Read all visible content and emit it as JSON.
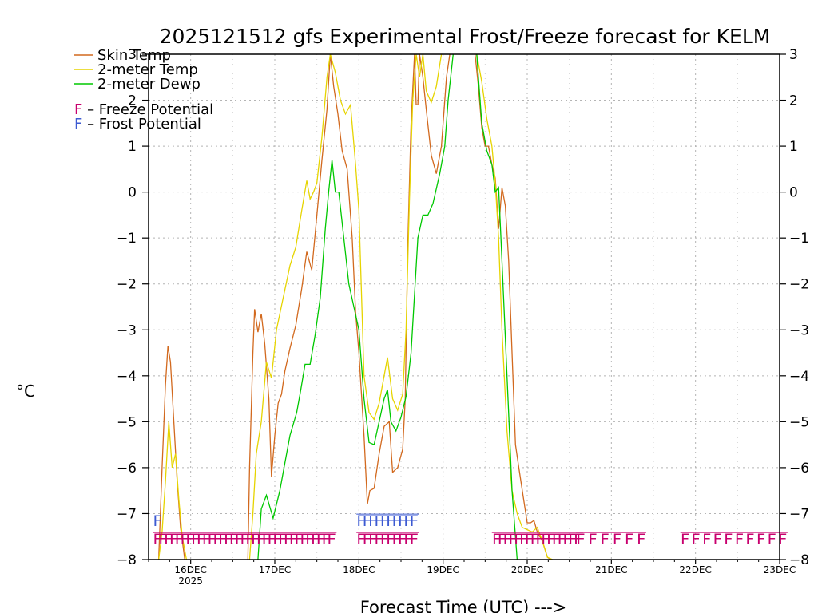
{
  "chart_data": {
    "type": "line",
    "title": "2025121512 gfs Experimental Frost/Freeze forecast for KELM",
    "xlabel": "Forecast Time (UTC) --->",
    "ylabel": "°C",
    "ylim": [
      -8,
      3
    ],
    "xlim": [
      15.5,
      23.0
    ],
    "yticks": [
      -8,
      -7,
      -6,
      -5,
      -4,
      -3,
      -2,
      -1,
      0,
      1,
      2,
      3
    ],
    "xticks": [
      {
        "x": 16,
        "label": "16DEC",
        "sublabel": "2025"
      },
      {
        "x": 17,
        "label": "17DEC",
        "sublabel": ""
      },
      {
        "x": 18,
        "label": "18DEC",
        "sublabel": ""
      },
      {
        "x": 19,
        "label": "19DEC",
        "sublabel": ""
      },
      {
        "x": 20,
        "label": "20DEC",
        "sublabel": ""
      },
      {
        "x": 21,
        "label": "21DEC",
        "sublabel": ""
      },
      {
        "x": 22,
        "label": "22DEC",
        "sublabel": ""
      },
      {
        "x": 23,
        "label": "23DEC",
        "sublabel": ""
      }
    ],
    "grid": true,
    "legend_position": "top-left",
    "series": [
      {
        "name": "Skin Temp",
        "color": "#d2691e",
        "points": [
          [
            15.62,
            -8.0
          ],
          [
            15.66,
            -6.0
          ],
          [
            15.7,
            -4.2
          ],
          [
            15.73,
            -3.35
          ],
          [
            15.76,
            -3.7
          ],
          [
            15.8,
            -5.0
          ],
          [
            15.84,
            -6.3
          ],
          [
            15.88,
            -7.3
          ],
          [
            15.93,
            -8.0
          ],
          null,
          [
            16.68,
            -8.0
          ],
          [
            16.7,
            -6.0
          ],
          [
            16.74,
            -3.5
          ],
          [
            16.76,
            -2.55
          ],
          [
            16.8,
            -3.05
          ],
          [
            16.84,
            -2.65
          ],
          [
            16.88,
            -3.3
          ],
          [
            16.93,
            -4.5
          ],
          [
            16.96,
            -6.2
          ],
          [
            17.0,
            -5.3
          ],
          [
            17.04,
            -4.6
          ],
          [
            17.08,
            -4.4
          ],
          [
            17.12,
            -3.9
          ],
          [
            17.18,
            -3.4
          ],
          [
            17.25,
            -2.9
          ],
          [
            17.32,
            -2.1
          ],
          [
            17.38,
            -1.3
          ],
          [
            17.44,
            -1.7
          ],
          [
            17.5,
            -0.5
          ],
          [
            17.56,
            0.7
          ],
          [
            17.62,
            1.8
          ],
          [
            17.66,
            3.0
          ],
          [
            17.7,
            2.3
          ],
          [
            17.75,
            1.7
          ],
          [
            17.8,
            0.9
          ],
          [
            17.86,
            0.5
          ],
          [
            17.92,
            -1.0
          ],
          [
            17.96,
            -2.6
          ],
          [
            18.0,
            -3.5
          ],
          [
            18.06,
            -5.3
          ],
          [
            18.1,
            -6.8
          ],
          [
            18.13,
            -6.5
          ],
          [
            18.18,
            -6.45
          ],
          [
            18.24,
            -5.7
          ],
          [
            18.3,
            -5.1
          ],
          [
            18.36,
            -5.0
          ],
          [
            18.4,
            -6.1
          ],
          [
            18.46,
            -6.0
          ],
          [
            18.52,
            -5.6
          ],
          [
            18.55,
            -4.5
          ],
          [
            18.58,
            -1.2
          ],
          [
            18.62,
            1.5
          ],
          [
            18.66,
            3.0
          ],
          [
            18.68,
            1.9
          ],
          [
            18.7,
            1.9
          ],
          [
            18.72,
            3.0
          ],
          [
            18.76,
            2.5
          ],
          [
            18.8,
            1.8
          ],
          [
            18.86,
            0.8
          ],
          [
            18.92,
            0.4
          ],
          [
            18.98,
            1.0
          ],
          [
            19.04,
            2.5
          ],
          [
            19.08,
            3.0
          ],
          null,
          [
            19.38,
            3.0
          ],
          [
            19.42,
            2.3
          ],
          [
            19.46,
            1.4
          ],
          [
            19.5,
            1.0
          ],
          [
            19.54,
            1.0
          ],
          [
            19.58,
            0.6
          ],
          [
            19.62,
            0.3
          ],
          [
            19.66,
            -0.8
          ],
          [
            19.7,
            0.1
          ],
          [
            19.74,
            -0.3
          ],
          [
            19.78,
            -1.5
          ],
          [
            19.82,
            -3.5
          ],
          [
            19.86,
            -5.5
          ],
          [
            19.9,
            -6.0
          ],
          [
            19.95,
            -6.6
          ],
          [
            20.0,
            -7.2
          ],
          [
            20.04,
            -7.2
          ],
          [
            20.08,
            -7.15
          ],
          [
            20.12,
            -7.4
          ],
          [
            20.18,
            -7.6
          ],
          [
            20.24,
            -7.95
          ],
          [
            20.28,
            -8.0
          ]
        ]
      },
      {
        "name": "2-meter Temp",
        "color": "#e6d400",
        "points": [
          [
            15.62,
            -8.0
          ],
          [
            15.66,
            -7.4
          ],
          [
            15.7,
            -6.3
          ],
          [
            15.74,
            -5.0
          ],
          [
            15.78,
            -6.0
          ],
          [
            15.82,
            -5.7
          ],
          [
            15.86,
            -6.7
          ],
          [
            15.9,
            -7.5
          ],
          [
            15.95,
            -8.0
          ],
          null,
          [
            16.7,
            -8.0
          ],
          [
            16.74,
            -7.0
          ],
          [
            16.78,
            -5.7
          ],
          [
            16.84,
            -5.0
          ],
          [
            16.9,
            -3.7
          ],
          [
            16.96,
            -4.05
          ],
          [
            17.02,
            -3.0
          ],
          [
            17.1,
            -2.3
          ],
          [
            17.18,
            -1.6
          ],
          [
            17.25,
            -1.2
          ],
          [
            17.32,
            -0.4
          ],
          [
            17.38,
            0.25
          ],
          [
            17.42,
            -0.15
          ],
          [
            17.46,
            0.0
          ],
          [
            17.5,
            0.2
          ],
          [
            17.56,
            1.2
          ],
          [
            17.62,
            2.5
          ],
          [
            17.66,
            3.0
          ],
          [
            17.72,
            2.6
          ],
          [
            17.78,
            2.0
          ],
          [
            17.84,
            1.7
          ],
          [
            17.9,
            1.9
          ],
          [
            17.96,
            0.6
          ],
          [
            18.0,
            -0.4
          ],
          [
            18.06,
            -4.0
          ],
          [
            18.12,
            -4.8
          ],
          [
            18.18,
            -4.95
          ],
          [
            18.24,
            -4.6
          ],
          [
            18.3,
            -4.0
          ],
          [
            18.34,
            -3.6
          ],
          [
            18.4,
            -4.5
          ],
          [
            18.46,
            -4.75
          ],
          [
            18.52,
            -4.4
          ],
          [
            18.56,
            -3.0
          ],
          [
            18.6,
            -0.2
          ],
          [
            18.64,
            2.0
          ],
          [
            18.68,
            3.0
          ],
          [
            18.72,
            2.5
          ],
          [
            18.76,
            3.0
          ],
          [
            18.8,
            2.2
          ],
          [
            18.86,
            1.95
          ],
          [
            18.92,
            2.3
          ],
          [
            18.98,
            3.0
          ],
          null,
          [
            19.4,
            3.0
          ],
          [
            19.46,
            2.4
          ],
          [
            19.52,
            1.6
          ],
          [
            19.58,
            1.0
          ],
          [
            19.62,
            0.2
          ],
          [
            19.66,
            -1.0
          ],
          [
            19.7,
            -3.0
          ],
          [
            19.76,
            -5.2
          ],
          [
            19.82,
            -6.5
          ],
          [
            19.88,
            -7.0
          ],
          [
            19.94,
            -7.3
          ],
          [
            20.0,
            -7.35
          ],
          [
            20.06,
            -7.4
          ],
          [
            20.12,
            -7.3
          ],
          [
            20.18,
            -7.6
          ],
          [
            20.24,
            -7.95
          ],
          [
            20.3,
            -8.0
          ]
        ]
      },
      {
        "name": "2-meter Dewp",
        "color": "#00c800",
        "points": [
          [
            16.8,
            -8.0
          ],
          [
            16.84,
            -6.9
          ],
          [
            16.9,
            -6.6
          ],
          [
            16.98,
            -7.1
          ],
          [
            17.06,
            -6.5
          ],
          [
            17.12,
            -5.9
          ],
          [
            17.18,
            -5.3
          ],
          [
            17.26,
            -4.8
          ],
          [
            17.3,
            -4.4
          ],
          [
            17.36,
            -3.75
          ],
          [
            17.42,
            -3.75
          ],
          [
            17.48,
            -3.1
          ],
          [
            17.54,
            -2.3
          ],
          [
            17.6,
            -0.8
          ],
          [
            17.64,
            0.0
          ],
          [
            17.68,
            0.7
          ],
          [
            17.72,
            0.0
          ],
          [
            17.76,
            0.0
          ],
          [
            17.82,
            -1.0
          ],
          [
            17.88,
            -2.0
          ],
          [
            17.94,
            -2.5
          ],
          [
            18.0,
            -3.0
          ],
          [
            18.06,
            -4.5
          ],
          [
            18.12,
            -5.45
          ],
          [
            18.18,
            -5.5
          ],
          [
            18.24,
            -5.0
          ],
          [
            18.3,
            -4.5
          ],
          [
            18.34,
            -4.3
          ],
          [
            18.38,
            -5.0
          ],
          [
            18.44,
            -5.2
          ],
          [
            18.5,
            -4.9
          ],
          [
            18.56,
            -4.45
          ],
          [
            18.62,
            -3.5
          ],
          [
            18.7,
            -1.0
          ],
          [
            18.76,
            -0.5
          ],
          [
            18.82,
            -0.5
          ],
          [
            18.88,
            -0.25
          ],
          [
            18.96,
            0.4
          ],
          [
            19.02,
            1.0
          ],
          [
            19.06,
            2.0
          ],
          [
            19.12,
            3.0
          ],
          null,
          [
            19.4,
            3.0
          ],
          [
            19.46,
            1.5
          ],
          [
            19.52,
            0.9
          ],
          [
            19.58,
            0.6
          ],
          [
            19.62,
            0.0
          ],
          [
            19.66,
            0.1
          ],
          [
            19.7,
            -1.5
          ],
          [
            19.76,
            -4.0
          ],
          [
            19.82,
            -6.5
          ],
          [
            19.88,
            -8.0
          ]
        ]
      }
    ],
    "freeze_potential_runs": [
      {
        "x_start": 15.55,
        "x_end": 17.62,
        "count": 33
      },
      {
        "x_start": 17.97,
        "x_end": 18.6,
        "count": 10
      },
      {
        "x_start": 19.58,
        "x_end": 20.55,
        "count": 16
      },
      {
        "x_start": 20.58,
        "x_end": 21.3,
        "count": 6
      },
      {
        "x_start": 21.82,
        "x_end": 22.98,
        "count": 10
      }
    ],
    "frost_potential_runs": [
      {
        "x_start": 15.55,
        "x_end": 15.58,
        "count": 1
      },
      {
        "x_start": 17.97,
        "x_end": 18.6,
        "count": 10
      }
    ],
    "legend": [
      {
        "label": "Skin Temp",
        "color": "#d2691e",
        "kind": "line"
      },
      {
        "label": "2-meter Temp",
        "color": "#e6d400",
        "kind": "line"
      },
      {
        "label": "2-meter Dewp",
        "color": "#00c800",
        "kind": "line"
      },
      {
        "label": "F  –  Freeze Potential",
        "color": "#c8006e",
        "kind": "glyph",
        "glyph": "F"
      },
      {
        "label": "F  –  Frost Potential",
        "color": "#3c5ad2",
        "kind": "glyph",
        "glyph": "F"
      }
    ],
    "colors": {
      "freeze": "#c8006e",
      "frost": "#3c5ad2",
      "grid": "#b4b4b4",
      "axis": "#000000"
    }
  }
}
